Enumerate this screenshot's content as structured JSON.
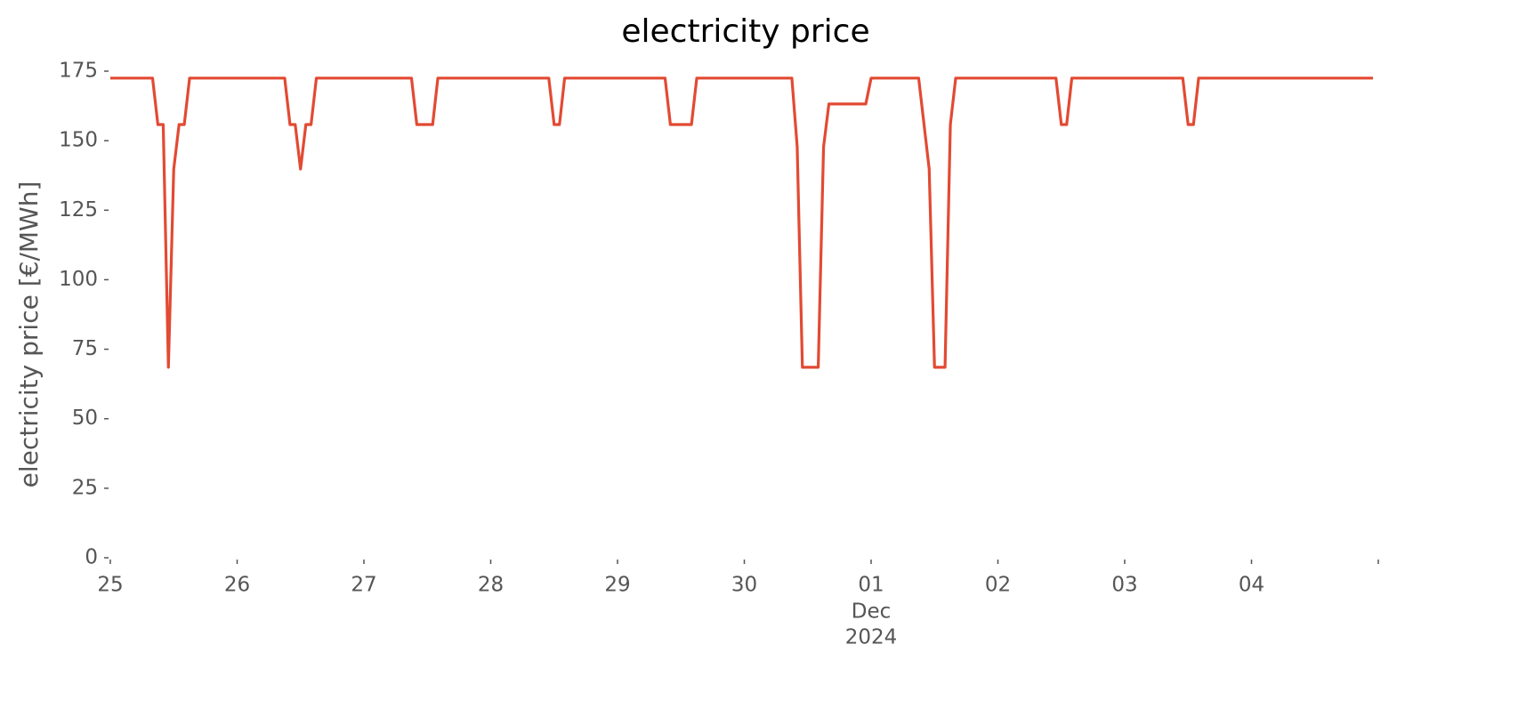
{
  "chart_data": {
    "type": "line",
    "title": "electricity price",
    "ylabel": "electricity price [€/MWh]",
    "x_month": "Dec",
    "x_year": "2024",
    "xlim": [
      0,
      10
    ],
    "xticks": [
      {
        "value": 0,
        "label": "25"
      },
      {
        "value": 1,
        "label": "26"
      },
      {
        "value": 2,
        "label": "27"
      },
      {
        "value": 3,
        "label": "28"
      },
      {
        "value": 4,
        "label": "29"
      },
      {
        "value": 5,
        "label": "30"
      },
      {
        "value": 6,
        "label": "01"
      },
      {
        "value": 7,
        "label": "02"
      },
      {
        "value": 8,
        "label": "03"
      },
      {
        "value": 9,
        "label": "04"
      }
    ],
    "ylim": [
      0,
      175
    ],
    "yticks": [
      0,
      25,
      50,
      75,
      100,
      125,
      150,
      175
    ],
    "grid": false,
    "series": [
      {
        "name": "electricity price",
        "color": "#e24a33",
        "x": [
          0,
          0.333,
          0.375,
          0.417,
          0.458,
          0.5,
          0.542,
          0.583,
          0.625,
          1.375,
          1.417,
          1.458,
          1.5,
          1.542,
          1.583,
          1.625,
          2.375,
          2.417,
          2.542,
          2.583,
          3.458,
          3.5,
          3.542,
          3.583,
          4.375,
          4.417,
          4.583,
          4.625,
          5.375,
          5.417,
          5.458,
          5.583,
          5.625,
          5.667,
          5.958,
          6,
          6.375,
          6.458,
          6.5,
          6.583,
          6.625,
          6.667,
          7.458,
          7.5,
          7.542,
          7.583,
          8.458,
          8.5,
          8.542,
          8.583,
          9.958
        ],
        "values": [
          172.5,
          172.5,
          155.8,
          155.8,
          68.5,
          139.8,
          155.8,
          155.8,
          172.5,
          172.5,
          155.8,
          155.8,
          139.8,
          155.8,
          155.8,
          172.5,
          172.5,
          155.8,
          155.8,
          172.5,
          172.5,
          155.8,
          155.8,
          172.5,
          172.5,
          155.8,
          155.8,
          172.5,
          172.5,
          147.8,
          68.5,
          68.5,
          147.8,
          163.2,
          163.2,
          172.5,
          172.5,
          139.8,
          68.5,
          68.5,
          155.8,
          172.5,
          172.5,
          155.8,
          155.8,
          172.5,
          172.5,
          155.8,
          155.8,
          172.5,
          172.5
        ]
      }
    ]
  }
}
